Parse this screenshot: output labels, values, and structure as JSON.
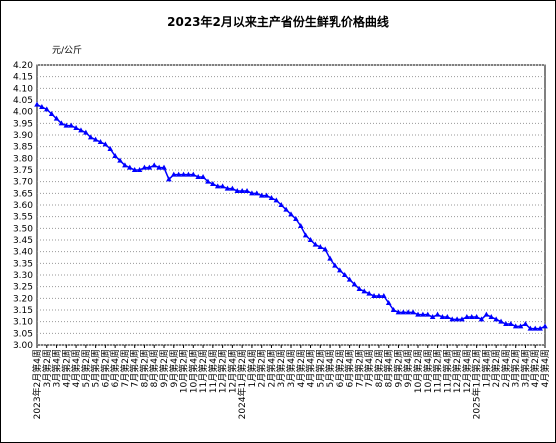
{
  "chart_data": {
    "type": "line",
    "title": "2023年2月以来主产省份生鲜乳价格曲线",
    "y_unit": "元/公斤",
    "categories": [
      "2023年2月第4周",
      null,
      "3月第2周",
      null,
      "3月第4周",
      null,
      "4月第2周",
      null,
      "4月第4周",
      null,
      "5月第2周",
      null,
      "5月第4周",
      null,
      "6月第2周",
      null,
      "6月第4周",
      null,
      "7月第2周",
      null,
      "7月第4周",
      null,
      "8月第2周",
      null,
      "8月第4周",
      null,
      "9月第2周",
      null,
      "9月第4周",
      null,
      "10月第2周",
      null,
      "10月第4周",
      null,
      "11月第2周",
      null,
      "11月第4周",
      null,
      "12月第2周",
      null,
      "12月第4周",
      null,
      "2024年1月第2周",
      null,
      "1月第4周",
      null,
      "2月第2周",
      null,
      "2月第4周",
      null,
      "3月第2周",
      null,
      "3月第4周",
      null,
      "4月第2周",
      null,
      "4月第4周",
      null,
      "5月第2周",
      null,
      "5月第4周",
      null,
      "6月第2周",
      null,
      "6月第4周",
      null,
      "7月第2周",
      null,
      "7月第4周",
      null,
      "8月第2周",
      null,
      "8月第4周",
      null,
      "9月第2周",
      null,
      "9月第4周",
      null,
      "10月第2周",
      null,
      "10月第4周",
      null,
      "11月第2周",
      null,
      "11月第4周",
      null,
      "12月第2周",
      null,
      "12月第4周",
      null,
      "2025年1月第2周",
      null,
      "1月第4周",
      null,
      "2月第2周",
      null,
      "2月第4周",
      null,
      "3月第2周",
      null,
      "3月第4周",
      null,
      "4月第2周",
      null,
      "4月第4周"
    ],
    "series": [
      {
        "color": "#0000ff",
        "values": [
          4.03,
          4.02,
          4.01,
          3.99,
          3.97,
          3.95,
          3.94,
          3.94,
          3.93,
          3.92,
          3.91,
          3.89,
          3.88,
          3.87,
          3.86,
          3.84,
          3.81,
          3.79,
          3.77,
          3.76,
          3.75,
          3.75,
          3.76,
          3.76,
          3.77,
          3.76,
          3.76,
          3.71,
          3.73,
          3.73,
          3.73,
          3.73,
          3.73,
          3.72,
          3.72,
          3.7,
          3.69,
          3.68,
          3.68,
          3.67,
          3.67,
          3.66,
          3.66,
          3.66,
          3.65,
          3.65,
          3.64,
          3.64,
          3.63,
          3.62,
          3.6,
          3.58,
          3.56,
          3.54,
          3.51,
          3.47,
          3.45,
          3.43,
          3.42,
          3.41,
          3.37,
          3.34,
          3.32,
          3.3,
          3.28,
          3.26,
          3.24,
          3.23,
          3.22,
          3.21,
          3.21,
          3.21,
          3.18,
          3.15,
          3.14,
          3.14,
          3.14,
          3.14,
          3.13,
          3.13,
          3.13,
          3.12,
          3.13,
          3.12,
          3.12,
          3.11,
          3.11,
          3.11,
          3.12,
          3.12,
          3.12,
          3.11,
          3.13,
          3.12,
          3.11,
          3.1,
          3.09,
          3.09,
          3.08,
          3.08,
          3.09,
          3.07,
          3.07,
          3.07,
          3.08
        ]
      }
    ],
    "ylim": [
      3.0,
      4.2
    ],
    "yticks": [
      {
        "value": 3.0,
        "label": "3.00"
      },
      {
        "value": 3.05,
        "label": "3.05"
      },
      {
        "value": 3.1,
        "label": "3.10"
      },
      {
        "value": 3.15,
        "label": "3.15"
      },
      {
        "value": 3.2,
        "label": "3.20"
      },
      {
        "value": 3.25,
        "label": "3.25"
      },
      {
        "value": 3.3,
        "label": "3.30"
      },
      {
        "value": 3.35,
        "label": "3.35"
      },
      {
        "value": 3.4,
        "label": "3.40"
      },
      {
        "value": 3.45,
        "label": "3.45"
      },
      {
        "value": 3.5,
        "label": "3.50"
      },
      {
        "value": 3.55,
        "label": "3.55"
      },
      {
        "value": 3.6,
        "label": "3.60"
      },
      {
        "value": 3.65,
        "label": "3.65"
      },
      {
        "value": 3.7,
        "label": "3.70"
      },
      {
        "value": 3.75,
        "label": "3.75"
      },
      {
        "value": 3.8,
        "label": "3.80"
      },
      {
        "value": 3.85,
        "label": "3.85"
      },
      {
        "value": 3.9,
        "label": "3.90"
      },
      {
        "value": 3.95,
        "label": "3.95"
      },
      {
        "value": 4.0,
        "label": "4.00"
      },
      {
        "value": 4.05,
        "label": "4.05"
      },
      {
        "value": 4.1,
        "label": "4.10"
      },
      {
        "value": 4.15,
        "label": "4.15"
      },
      {
        "value": 4.2,
        "label": "4.20"
      }
    ],
    "grid": true
  }
}
